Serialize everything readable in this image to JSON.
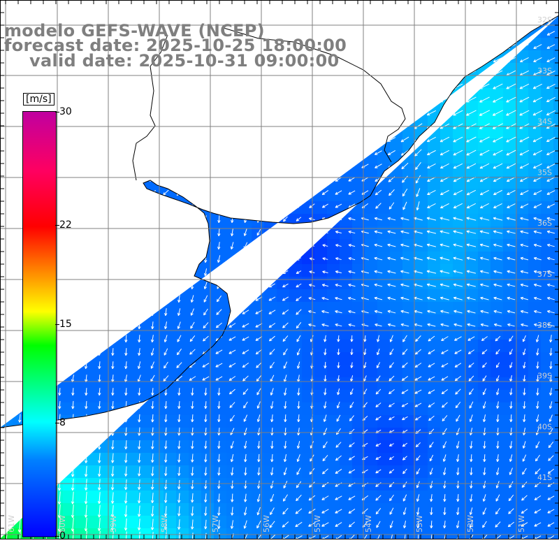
{
  "title": {
    "line1": "modelo GEFS-WAVE (NCEP)",
    "line2": "forecast date: 2025-10-25 18:00:00",
    "line3": "valid date: 2025-10-31 09:00:00"
  },
  "colorbar": {
    "unit": "[m/s]",
    "ticks": [
      "30",
      "22",
      "15",
      "8",
      "0"
    ],
    "tick_values": [
      30,
      22,
      15,
      8,
      0
    ],
    "min": 0,
    "max": 30,
    "colors": [
      "#0000ff",
      "#0080ff",
      "#00ffff",
      "#00ff00",
      "#ffff00",
      "#ff8000",
      "#ff0000",
      "#c000a0"
    ]
  },
  "map": {
    "lat_labels": [
      "32S",
      "33S",
      "34S",
      "35S",
      "36S",
      "37S",
      "38S",
      "39S",
      "40S",
      "41S"
    ],
    "lon_labels": [
      "61W",
      "60W",
      "59W",
      "58W",
      "57W",
      "56W",
      "55W",
      "54W",
      "53W",
      "52W",
      "51W"
    ],
    "land_color": "#ffffff",
    "grid_color": "#808080",
    "coast_color": "#000000",
    "arrow_color": "#ffffff"
  }
}
